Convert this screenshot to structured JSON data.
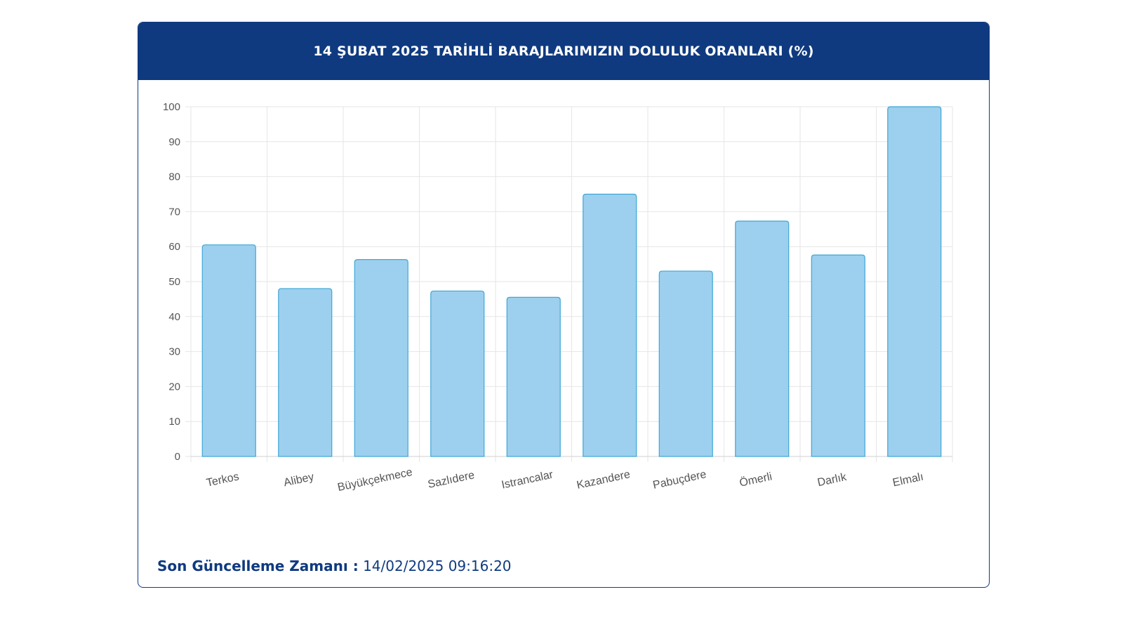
{
  "header": {
    "title": "14 ŞUBAT 2025 TARİHLİ BARAJLARIMIZIN DOLULUK ORANLARI (%)"
  },
  "footer": {
    "label": "Son Güncelleme Zamanı :",
    "value": "14/02/2025 09:16:20"
  },
  "colors": {
    "header_bg": "#0f3a80",
    "bar_fill": "#9dd0ee",
    "bar_stroke": "#3fa6d6",
    "grid": "#e6e6e6",
    "tick_text": "#555555"
  },
  "chart_data": {
    "type": "bar",
    "title": "14 ŞUBAT 2025 TARİHLİ BARAJLARIMIZIN DOLULUK ORANLARI (%)",
    "categories": [
      "Terkos",
      "Alibey",
      "Büyükçekmece",
      "Sazlıdere",
      "Istrancalar",
      "Kazandere",
      "Pabuçdere",
      "Ömerli",
      "Darlık",
      "Elmalı"
    ],
    "values": [
      60.5,
      48,
      56.3,
      47.3,
      45.5,
      75,
      53,
      67.3,
      57.6,
      100
    ],
    "ylim": [
      0,
      100
    ],
    "yticks": [
      "0",
      "10",
      "20",
      "30",
      "40",
      "50",
      "60",
      "70",
      "80",
      "90",
      "100"
    ],
    "grid": true,
    "legend": "none"
  }
}
